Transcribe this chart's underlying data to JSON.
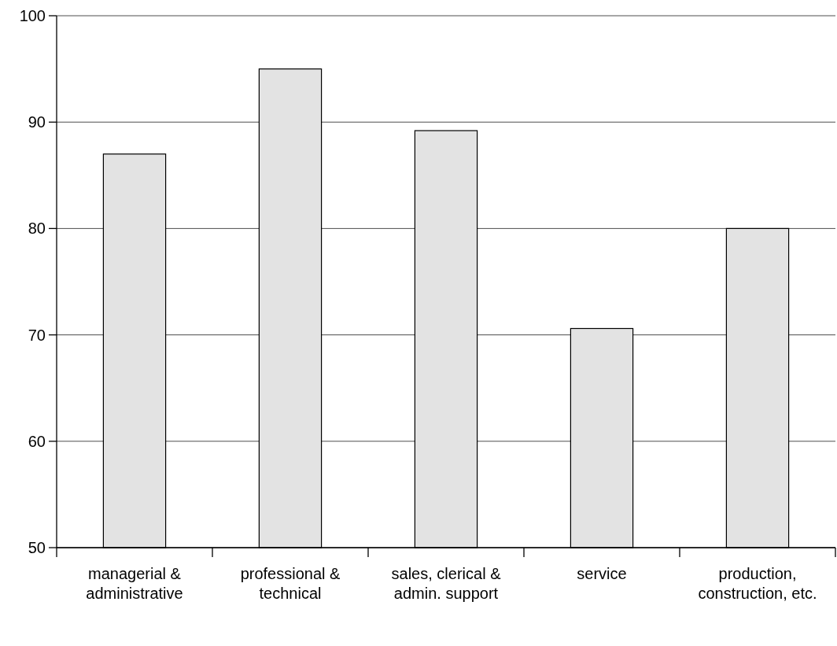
{
  "chart_data": {
    "type": "bar",
    "categories": [
      "managerial & administrative",
      "professional & technical",
      "sales, clerical & admin. support",
      "service",
      "production, construction, etc."
    ],
    "values": [
      87,
      95,
      89.2,
      70.6,
      80
    ],
    "color": "#e3e3e3",
    "ylim": [
      50,
      100
    ],
    "yticks": [
      50,
      60,
      70,
      80,
      90,
      100
    ],
    "grid": "y"
  }
}
